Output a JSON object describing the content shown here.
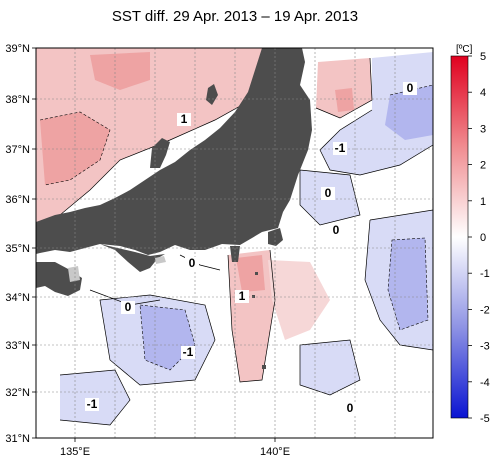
{
  "title": "SST diff. 29 Apr. 2013 – 19 Apr. 2013",
  "axes": {
    "lat_ticks": [
      "39°N",
      "38°N",
      "37°N",
      "36°N",
      "35°N",
      "34°N",
      "33°N",
      "32°N",
      "31°N"
    ],
    "lon_ticks": [
      "135°E",
      "140°E"
    ]
  },
  "contour_labels": [
    "1",
    "0",
    "-1",
    "0",
    "0",
    "1",
    "0",
    "-1",
    "-1",
    "0",
    "0"
  ],
  "colorbar": {
    "unit": "[ºC]",
    "ticks": [
      "5",
      "4",
      "3",
      "2",
      "1",
      "0",
      "-1",
      "-2",
      "-3",
      "-4",
      "-5"
    ],
    "colors": [
      "#e0001f",
      "#ea3b4b",
      "#f2747b",
      "#f7a8ab",
      "#fbd3d4",
      "#ffffff",
      "#d6d8f7",
      "#aaaeee",
      "#7b80e0",
      "#4d53d4",
      "#0a14d2"
    ]
  },
  "colors": {
    "land": "#4d4d4d",
    "warm": "#f3c4c4",
    "warm_strong": "#eea3a3",
    "cool": "#d8dbf6",
    "cool_strong": "#b2b6ee"
  }
}
